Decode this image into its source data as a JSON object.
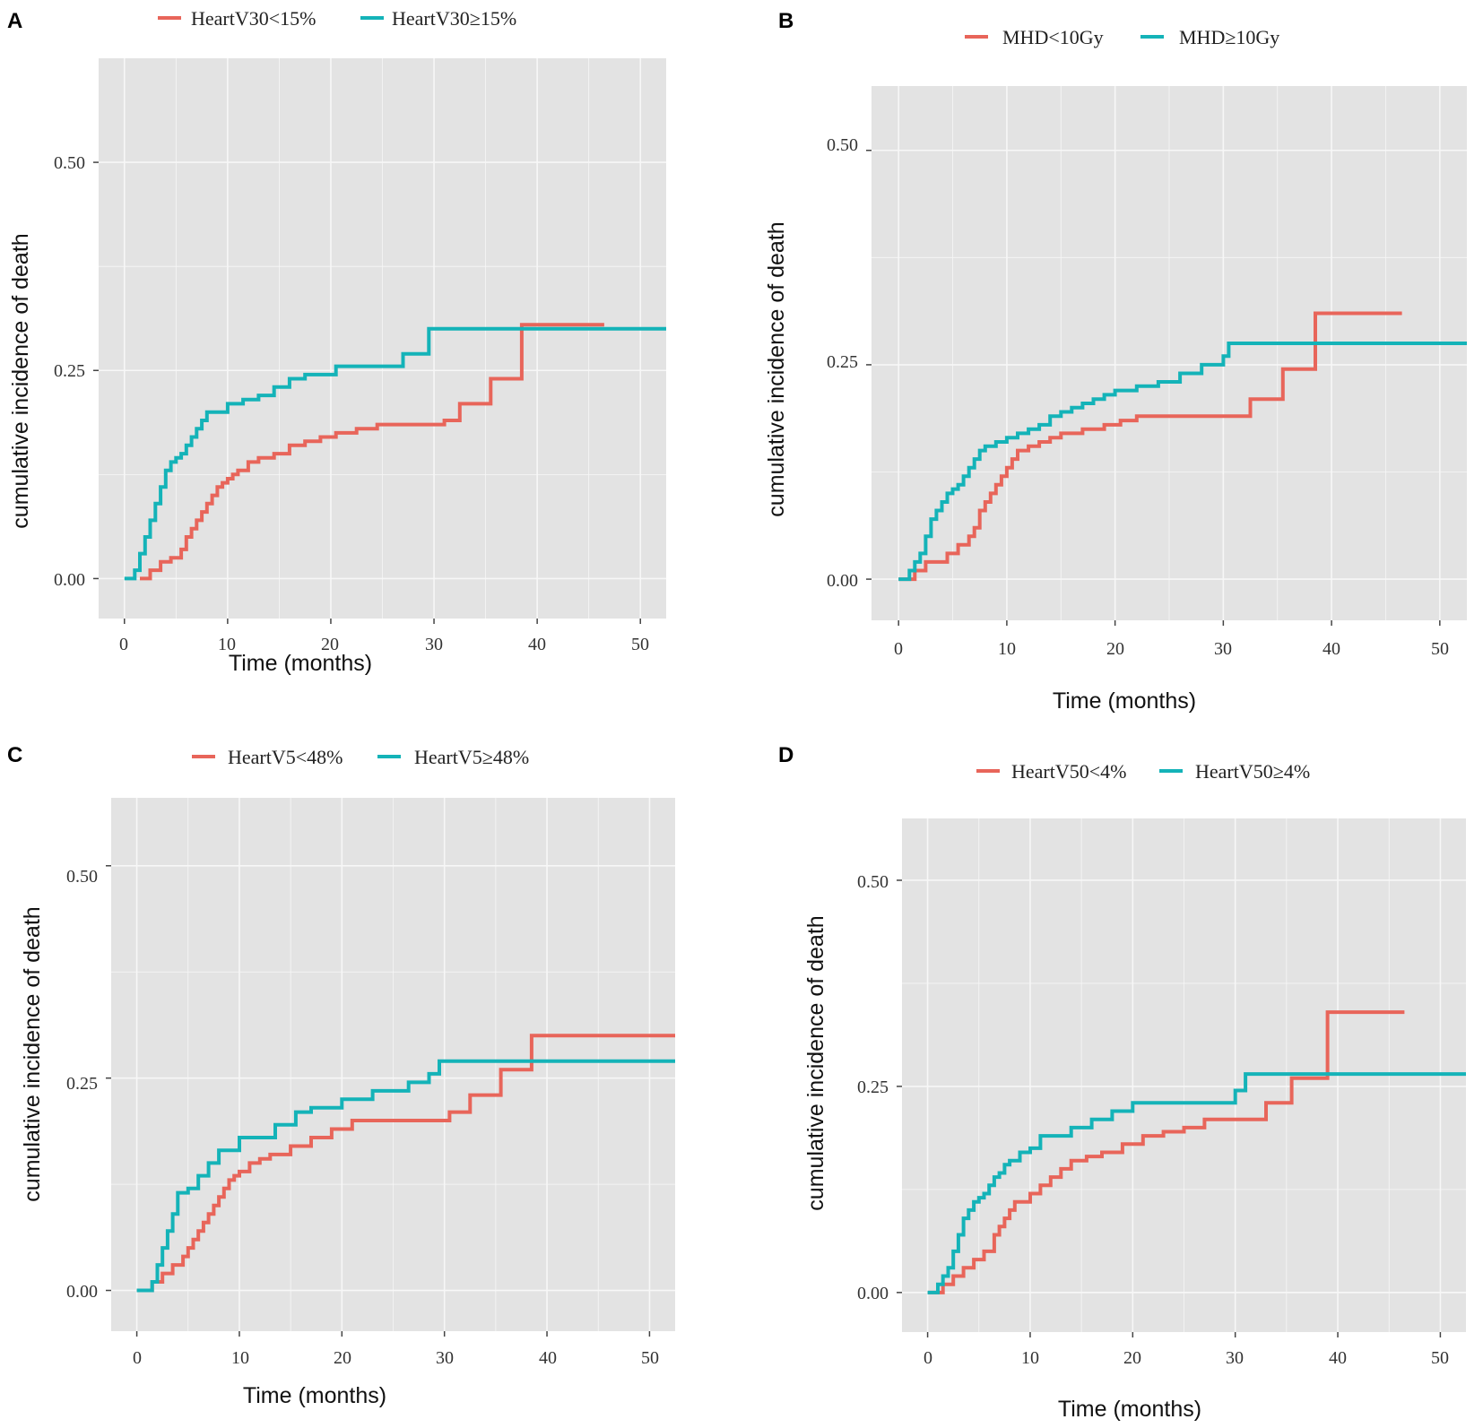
{
  "colors": {
    "red": "#E8655A",
    "teal": "#14B3B8",
    "panel_bg": "#E3E3E3",
    "grid": "#F7F7F7"
  },
  "chart_data": [
    {
      "type": "line",
      "panel": "A",
      "xlabel": "Time (months)",
      "ylabel": "cumulative incidence of death",
      "xlim": [
        -2.5,
        52.5
      ],
      "ylim": [
        -0.048,
        0.625
      ],
      "xticks": [
        "0",
        "10",
        "20",
        "30",
        "40",
        "50"
      ],
      "yticks": [
        "0.00",
        "0.25",
        "0.50"
      ],
      "series": [
        {
          "name": "HeartV30<15%",
          "color": "#E8655A",
          "x": [
            1.5,
            2.5,
            3.5,
            4.5,
            5.5,
            6,
            6.5,
            7,
            7.5,
            8,
            8.5,
            9,
            9.5,
            10,
            10.5,
            11,
            12,
            13,
            14.5,
            16,
            17.5,
            19,
            20.5,
            22.5,
            24.5,
            31,
            32.5,
            35.5,
            38.5,
            46.5
          ],
          "y": [
            0,
            0.01,
            0.02,
            0.025,
            0.035,
            0.05,
            0.06,
            0.07,
            0.08,
            0.09,
            0.1,
            0.11,
            0.115,
            0.12,
            0.125,
            0.13,
            0.14,
            0.145,
            0.15,
            0.16,
            0.165,
            0.17,
            0.175,
            0.18,
            0.185,
            0.19,
            0.21,
            0.24,
            0.305,
            0.305
          ]
        },
        {
          "name": "HeartV30≥15%",
          "color": "#14B3B8",
          "x": [
            0,
            1,
            1.5,
            2,
            2.5,
            3,
            3.5,
            4,
            4.5,
            5,
            5.5,
            6,
            6.5,
            7,
            7.5,
            8,
            10,
            11.5,
            13,
            14.5,
            16,
            17.5,
            20.5,
            27,
            29.5,
            52.5
          ],
          "y": [
            0,
            0.01,
            0.03,
            0.05,
            0.07,
            0.09,
            0.11,
            0.13,
            0.14,
            0.145,
            0.15,
            0.16,
            0.17,
            0.18,
            0.19,
            0.2,
            0.21,
            0.215,
            0.22,
            0.23,
            0.24,
            0.245,
            0.255,
            0.27,
            0.3,
            0.3
          ]
        }
      ]
    },
    {
      "type": "line",
      "panel": "B",
      "xlabel": "Time (months)",
      "ylabel": "cumulative incidence of death",
      "xlim": [
        -2.5,
        52.5
      ],
      "ylim": [
        -0.048,
        0.575
      ],
      "xticks": [
        "0",
        "10",
        "20",
        "30",
        "40",
        "50"
      ],
      "yticks": [
        "0.00",
        "0.25",
        "0.50"
      ],
      "series": [
        {
          "name": "MHD<10Gy",
          "color": "#E8655A",
          "x": [
            0,
            1.5,
            2.5,
            4.5,
            5.5,
            6.5,
            7,
            7.5,
            8,
            8.5,
            9,
            9.5,
            10,
            10.5,
            11,
            12,
            13,
            14,
            15,
            17,
            19,
            20.5,
            22,
            24.5,
            27,
            32.5,
            35.5,
            38.5,
            46.5
          ],
          "y": [
            0,
            0.01,
            0.02,
            0.03,
            0.04,
            0.05,
            0.06,
            0.08,
            0.09,
            0.1,
            0.11,
            0.12,
            0.13,
            0.14,
            0.15,
            0.155,
            0.16,
            0.165,
            0.17,
            0.175,
            0.18,
            0.185,
            0.19,
            0.19,
            0.19,
            0.21,
            0.245,
            0.31,
            0.31
          ]
        },
        {
          "name": "MHD≥10Gy",
          "color": "#14B3B8",
          "x": [
            0,
            1,
            1.5,
            2,
            2.5,
            3,
            3.5,
            4,
            4.5,
            5,
            5.5,
            6,
            6.5,
            7,
            7.5,
            8,
            9,
            10,
            11,
            12,
            13,
            14,
            15,
            16,
            17,
            18,
            19,
            20,
            22,
            24,
            26,
            28,
            30,
            30.5,
            52.5
          ],
          "y": [
            0,
            0.01,
            0.02,
            0.03,
            0.05,
            0.07,
            0.08,
            0.09,
            0.1,
            0.105,
            0.11,
            0.12,
            0.13,
            0.14,
            0.15,
            0.155,
            0.16,
            0.165,
            0.17,
            0.175,
            0.18,
            0.19,
            0.195,
            0.2,
            0.205,
            0.21,
            0.215,
            0.22,
            0.225,
            0.23,
            0.24,
            0.25,
            0.26,
            0.275,
            0.275
          ]
        }
      ]
    },
    {
      "type": "line",
      "panel": "C",
      "xlabel": "Time (months)",
      "ylabel": "cumulative incidence of death",
      "xlim": [
        -2.5,
        52.5
      ],
      "ylim": [
        -0.048,
        0.58
      ],
      "xticks": [
        "0",
        "10",
        "20",
        "30",
        "40",
        "50"
      ],
      "yticks": [
        "0.00",
        "0.25",
        "0.50"
      ],
      "series": [
        {
          "name": "HeartV5<48%",
          "color": "#E8655A",
          "x": [
            0,
            1.5,
            2.5,
            3.5,
            4.5,
            5,
            5.5,
            6,
            6.5,
            7,
            7.5,
            8,
            8.5,
            9,
            9.5,
            10,
            11,
            12,
            13,
            15,
            17,
            19,
            21,
            30.5,
            32.5,
            35.5,
            38.5,
            52.5
          ],
          "y": [
            0,
            0.01,
            0.02,
            0.03,
            0.04,
            0.05,
            0.06,
            0.07,
            0.08,
            0.09,
            0.1,
            0.11,
            0.12,
            0.13,
            0.135,
            0.14,
            0.15,
            0.155,
            0.16,
            0.17,
            0.18,
            0.19,
            0.2,
            0.21,
            0.23,
            0.26,
            0.3,
            0.3
          ]
        },
        {
          "name": "HeartV5≥48%",
          "color": "#14B3B8",
          "x": [
            0,
            1.5,
            2,
            2.5,
            3,
            3.5,
            4,
            5,
            6,
            7,
            8,
            10,
            13.5,
            15.5,
            17,
            20,
            23,
            26.5,
            28.5,
            29.5,
            52.5
          ],
          "y": [
            0,
            0.01,
            0.03,
            0.05,
            0.07,
            0.09,
            0.115,
            0.12,
            0.135,
            0.15,
            0.165,
            0.18,
            0.195,
            0.21,
            0.215,
            0.225,
            0.235,
            0.245,
            0.255,
            0.27,
            0.27
          ]
        }
      ]
    },
    {
      "type": "line",
      "panel": "D",
      "xlabel": "Time (months)",
      "ylabel": "cumulative incidence of death",
      "xlim": [
        -2.5,
        52.5
      ],
      "ylim": [
        -0.048,
        0.575
      ],
      "xticks": [
        "0",
        "10",
        "20",
        "30",
        "40",
        "50"
      ],
      "yticks": [
        "0.00",
        "0.25",
        "0.50"
      ],
      "series": [
        {
          "name": "HeartV50<4%",
          "color": "#E8655A",
          "x": [
            0,
            1.5,
            2.5,
            3.5,
            4.5,
            5.5,
            6.5,
            7,
            7.5,
            8,
            8.5,
            10,
            11,
            12,
            13,
            14,
            15.5,
            17,
            19,
            21,
            23,
            25,
            27,
            30,
            33,
            35.5,
            39,
            46.5
          ],
          "y": [
            0,
            0.01,
            0.02,
            0.03,
            0.04,
            0.05,
            0.07,
            0.08,
            0.09,
            0.1,
            0.11,
            0.12,
            0.13,
            0.14,
            0.15,
            0.16,
            0.165,
            0.17,
            0.18,
            0.19,
            0.195,
            0.2,
            0.21,
            0.21,
            0.23,
            0.26,
            0.34,
            0.34
          ]
        },
        {
          "name": "HeartV50≥4%",
          "color": "#14B3B8",
          "x": [
            0,
            1,
            1.5,
            2,
            2.5,
            3,
            3.5,
            4,
            4.5,
            5,
            5.5,
            6,
            6.5,
            7,
            7.5,
            8,
            9,
            10,
            11,
            12,
            14,
            16,
            18,
            20,
            24,
            28,
            30,
            31,
            52.5
          ],
          "y": [
            0,
            0.01,
            0.02,
            0.03,
            0.05,
            0.07,
            0.09,
            0.1,
            0.11,
            0.115,
            0.12,
            0.13,
            0.14,
            0.145,
            0.155,
            0.16,
            0.17,
            0.175,
            0.19,
            0.19,
            0.2,
            0.21,
            0.22,
            0.23,
            0.23,
            0.23,
            0.245,
            0.265,
            0.265
          ]
        }
      ]
    }
  ]
}
